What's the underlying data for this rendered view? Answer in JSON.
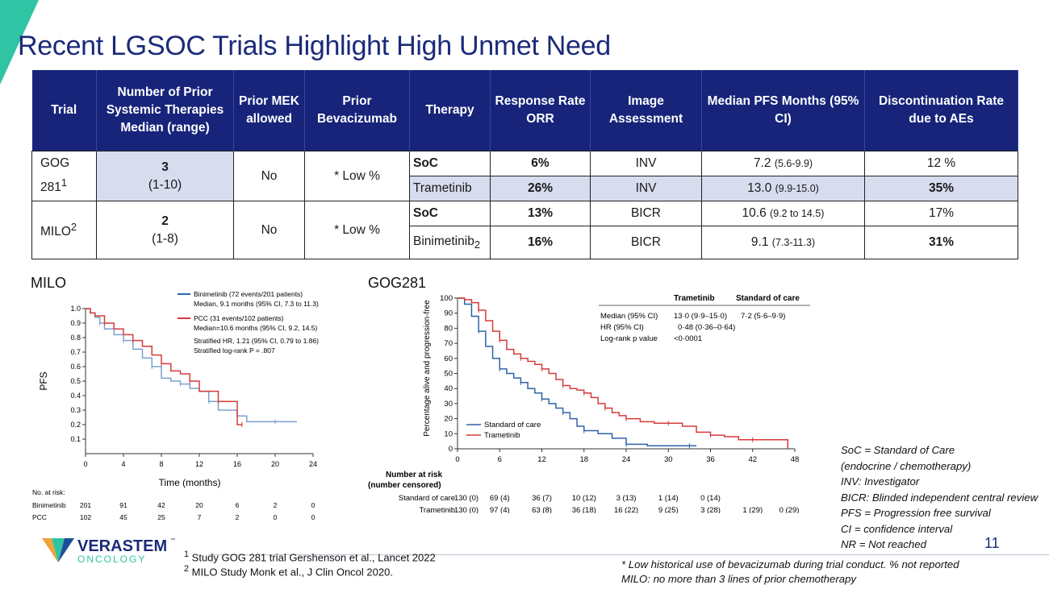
{
  "slide": {
    "title": "Recent LGSOC Trials Highlight High Unmet Need",
    "page_number": "11"
  },
  "colors": {
    "header_bg": "#17247a",
    "row_shade": "#d7dcee",
    "title": "#1b2a78",
    "accent": "#2fc4a3",
    "km_blue": "#2e63a6",
    "km_red": "#d63a3a"
  },
  "table": {
    "headers": [
      "Trial",
      "Number of Prior Systemic Therapies Median (range)",
      "Prior MEK allowed",
      "Prior Bevacizumab",
      "Therapy",
      "Response Rate ORR",
      "Image Assessment",
      "Median PFS Months (95% CI)",
      "Discontinuation Rate due to AEs"
    ],
    "trials": [
      {
        "name": "GOG 281",
        "sup": "1",
        "prior_median": "3",
        "prior_range": "(1-10)",
        "mek": "No",
        "bev": "* Low %",
        "arms": [
          {
            "therapy": "SoC",
            "therapy_sup": "",
            "orr": "6%",
            "assessment": "INV",
            "pfs": "7.2",
            "pfs_ci": "(5.6-9.9)",
            "disc": "12 %"
          },
          {
            "therapy": "Trametinib",
            "therapy_sup": "",
            "orr": "26%",
            "assessment": "INV",
            "pfs": "13.0",
            "pfs_ci": "(9.9-15.0)",
            "disc": "35%"
          }
        ]
      },
      {
        "name": "MILO",
        "sup": "2",
        "prior_median": "2",
        "prior_range": "(1-8)",
        "mek": "No",
        "bev": "* Low %",
        "arms": [
          {
            "therapy": "SoC",
            "therapy_sup": "",
            "orr": "13%",
            "assessment": "BICR",
            "pfs": "10.6",
            "pfs_ci": "(9.2 to 14.5)",
            "disc": "17%"
          },
          {
            "therapy": "Binimetinib",
            "therapy_sup": "2",
            "orr": "16%",
            "assessment": "BICR",
            "pfs": "9.1",
            "pfs_ci": "(7.3-11.3)",
            "disc": "31%"
          }
        ]
      }
    ]
  },
  "milo_chart": {
    "label": "MILO",
    "legend": [
      {
        "line1": "Binimetinib (72 events/201 patients)",
        "line2": "Median, 9.1 months (95% CI, 7.3 to 11.3)"
      },
      {
        "line1": "PCC (31 events/102 patients)",
        "line2": "Median=10.6 months (95% CI, 9.2, 14.5)"
      }
    ],
    "hr_text": "Stratified HR, 1.21 (95% CI, 0.79 to 1.86)",
    "logrank_text": "Stratified log-rank P = .807",
    "risk_title": "No. at risk:",
    "risk_rows": [
      {
        "label": "Binimetinib",
        "values": [
          "201",
          "91",
          "42",
          "20",
          "6",
          "2",
          "0"
        ]
      },
      {
        "label": "PCC",
        "values": [
          "102",
          "45",
          "25",
          "7",
          "2",
          "0",
          "0"
        ]
      }
    ]
  },
  "gog_chart": {
    "label": "GOG281",
    "legend": [
      "Standard of care",
      "Trametinib"
    ],
    "stats_headers": [
      "Trametinib",
      "Standard of care"
    ],
    "stats_rows": [
      {
        "label": "Median (95% CI)",
        "tram": "13·0 (9·9–15·0)",
        "soc": "7·2 (5·6–9·9)"
      },
      {
        "label": "HR (95% CI)",
        "tram": "0·48 (0·36–0·64)",
        "soc": ""
      },
      {
        "label": "Log-rank p value",
        "tram": "<0·0001",
        "soc": ""
      }
    ],
    "risk_title_1": "Number at risk",
    "risk_title_2": "(number censored)",
    "risk_rows": [
      {
        "label": "Standard of care",
        "values": [
          "130 (0)",
          "69 (4)",
          "36 (7)",
          "10 (12)",
          "3 (13)",
          "1 (14)",
          "0 (14)",
          "",
          ""
        ]
      },
      {
        "label": "Trametinib",
        "values": [
          "130 (0)",
          "97 (4)",
          "63 (8)",
          "36 (18)",
          "16 (22)",
          "9 (25)",
          "3 (28)",
          "1 (29)",
          "0 (29)"
        ]
      }
    ]
  },
  "chart_data": [
    {
      "type": "line",
      "title": "MILO",
      "xlabel": "Time (months)",
      "ylabel": "PFS",
      "xlim": [
        0,
        24
      ],
      "ylim": [
        0,
        1.0
      ],
      "xticks": [
        0,
        4,
        8,
        12,
        16,
        20,
        24
      ],
      "yticks": [
        0.1,
        0.2,
        0.3,
        0.4,
        0.5,
        0.6,
        0.7,
        0.8,
        0.9,
        1.0
      ],
      "series": [
        {
          "name": "Binimetinib",
          "x": [
            0,
            0.5,
            1,
            1.5,
            2,
            3,
            4,
            5,
            6,
            7,
            8,
            9,
            10,
            11,
            12,
            13,
            14,
            15,
            16,
            17,
            18,
            20,
            22.3
          ],
          "y": [
            1.0,
            0.97,
            0.94,
            0.9,
            0.86,
            0.82,
            0.78,
            0.72,
            0.66,
            0.6,
            0.52,
            0.5,
            0.48,
            0.45,
            0.43,
            0.36,
            0.3,
            0.3,
            0.26,
            0.22,
            0.22,
            0.22,
            0.22
          ]
        },
        {
          "name": "PCC",
          "x": [
            0,
            0.5,
            1,
            2,
            3,
            4,
            5,
            6,
            7,
            8,
            9,
            10,
            11,
            12,
            13,
            14,
            15,
            16,
            16.5
          ],
          "y": [
            1.0,
            0.97,
            0.95,
            0.9,
            0.86,
            0.82,
            0.78,
            0.74,
            0.68,
            0.62,
            0.57,
            0.55,
            0.5,
            0.43,
            0.43,
            0.36,
            0.36,
            0.2,
            0.2
          ]
        }
      ]
    },
    {
      "type": "line",
      "title": "GOG281",
      "xlabel": "",
      "ylabel": "Percentage alive and progression-free",
      "xlim": [
        0,
        48
      ],
      "ylim": [
        0,
        100
      ],
      "xticks": [
        0,
        6,
        12,
        18,
        24,
        30,
        36,
        42,
        48
      ],
      "yticks": [
        0,
        10,
        20,
        30,
        40,
        50,
        60,
        70,
        80,
        90,
        100
      ],
      "series": [
        {
          "name": "Standard of care",
          "x": [
            0,
            1,
            2,
            3,
            4,
            5,
            6,
            7,
            8,
            9,
            10,
            11,
            12,
            13,
            14,
            15,
            16,
            17,
            18,
            20,
            22,
            24,
            27,
            30,
            33,
            34
          ],
          "y": [
            100,
            96,
            88,
            78,
            68,
            60,
            53,
            50,
            47,
            44,
            40,
            37,
            33,
            30,
            27,
            24,
            20,
            15,
            12,
            10,
            7,
            3,
            2,
            2,
            2,
            2
          ]
        },
        {
          "name": "Trametinib",
          "x": [
            0,
            1,
            2,
            3,
            4,
            5,
            6,
            7,
            8,
            9,
            10,
            11,
            12,
            13,
            14,
            15,
            16,
            17,
            18,
            19,
            20,
            21,
            22,
            23,
            24,
            26,
            28,
            30,
            32,
            34,
            36,
            38,
            40,
            42,
            44,
            47
          ],
          "y": [
            100,
            99,
            97,
            92,
            85,
            78,
            72,
            66,
            63,
            60,
            58,
            56,
            53,
            50,
            46,
            42,
            40,
            39,
            37,
            34,
            30,
            27,
            24,
            22,
            20,
            18,
            17,
            17,
            15,
            11,
            9,
            8,
            6,
            6,
            6,
            0
          ]
        }
      ]
    }
  ],
  "legend_box": [
    "SoC = Standard of Care",
    "(endocrine / chemotherapy)",
    "INV: Investigator",
    "BICR: Blinded independent central review",
    "PFS = Progression free survival",
    "CI = confidence interval",
    "NR = Not reached"
  ],
  "footnotes": [
    {
      "num": "1",
      "text": "Study GOG 281 trial Gershenson et al., Lancet 2022"
    },
    {
      "num": "2",
      "text": "MILO Study Monk et al., J Clin Oncol 2020."
    }
  ],
  "bottom_notes": [
    "* Low historical use of bevacizumab during trial conduct. % not reported",
    "MILO: no more than 3 lines of prior chemotherapy"
  ],
  "logo": {
    "name": "VERASTEM",
    "tm": "™",
    "sub": "ONCOLOGY"
  }
}
